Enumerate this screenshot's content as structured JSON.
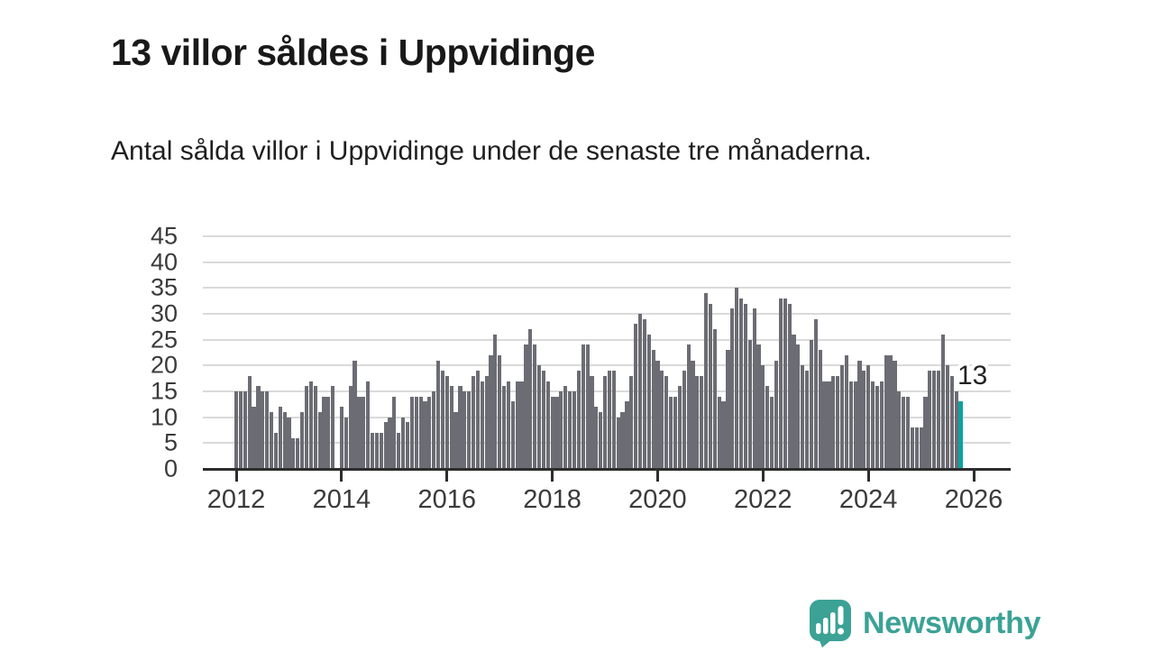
{
  "header": {
    "title": "13 villor såldes i Uppvidinge",
    "subtitle": "Antal sålda villor i Uppvidinge under de senaste tre månaderna."
  },
  "chart_data": {
    "type": "bar",
    "title": "13 villor såldes i Uppvidinge",
    "subtitle": "Antal sålda villor i Uppvidinge under de senaste tre månaderna.",
    "xlabel": "",
    "ylabel": "",
    "ylim": [
      0,
      45
    ],
    "y_ticks": [
      0,
      5,
      10,
      15,
      20,
      25,
      30,
      35,
      40,
      45
    ],
    "x_tick_labels": [
      "2012",
      "2014",
      "2016",
      "2018",
      "2020",
      "2022",
      "2024",
      "2026"
    ],
    "x_range_years": [
      2012,
      2026
    ],
    "grid": true,
    "legend_position": "none",
    "values": [
      15,
      15,
      15,
      18,
      12,
      16,
      15,
      15,
      11,
      7,
      12,
      11,
      10,
      6,
      6,
      11,
      16,
      17,
      16,
      11,
      14,
      14,
      16,
      0,
      12,
      10,
      16,
      21,
      14,
      14,
      17,
      7,
      7,
      7,
      9,
      10,
      14,
      7,
      10,
      9,
      14,
      14,
      14,
      13,
      14,
      15,
      21,
      19,
      18,
      16,
      11,
      16,
      15,
      15,
      18,
      19,
      17,
      18,
      22,
      26,
      22,
      16,
      17,
      13,
      17,
      17,
      24,
      27,
      24,
      20,
      19,
      17,
      14,
      14,
      15,
      16,
      15,
      15,
      19,
      24,
      24,
      18,
      12,
      11,
      18,
      19,
      19,
      10,
      11,
      13,
      18,
      28,
      30,
      29,
      26,
      23,
      21,
      19,
      18,
      14,
      14,
      16,
      19,
      24,
      21,
      18,
      18,
      34,
      32,
      27,
      14,
      13,
      23,
      31,
      35,
      33,
      32,
      25,
      31,
      24,
      20,
      16,
      14,
      21,
      33,
      33,
      32,
      26,
      24,
      20,
      19,
      25,
      29,
      23,
      17,
      17,
      18,
      18,
      20,
      22,
      17,
      17,
      21,
      19,
      20,
      17,
      16,
      17,
      22,
      22,
      21,
      15,
      14,
      14,
      8,
      8,
      8,
      14,
      19,
      19,
      19,
      26,
      20,
      18,
      15,
      13
    ],
    "highlight_last_value": 13,
    "last_value_label": "13"
  },
  "annotation": {
    "label": "13"
  },
  "footer": {
    "brand": "Newsworthy"
  },
  "colors": {
    "bar": "#6c6c74",
    "highlight": "#0ba3a0",
    "axis": "#2d2d2d",
    "grid": "#dadada",
    "tick_label": "#3a3a3a",
    "title": "#191919",
    "brand": "#3ba295"
  }
}
